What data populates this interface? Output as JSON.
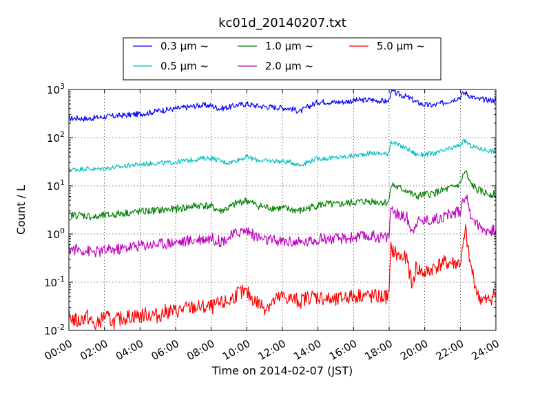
{
  "chart_data": {
    "type": "line",
    "title": "kc01d_20140207.txt",
    "xlabel": "Time on 2014-02-07 (JST)",
    "ylabel": "Count / L",
    "xlim": [
      "2014-02-07T00:00",
      "2014-02-08T00:00"
    ],
    "ylim": [
      0.01,
      1000
    ],
    "yscale": "log",
    "grid": true,
    "legend_placement": "top-center (above plot), 3 columns",
    "x_tick_labels": [
      "00:00",
      "02:00",
      "04:00",
      "06:00",
      "08:00",
      "10:00",
      "12:00",
      "14:00",
      "16:00",
      "18:00",
      "20:00",
      "22:00",
      "24:00"
    ],
    "y_tick_labels": [
      {
        "base": "10",
        "exp": "-2"
      },
      {
        "base": "10",
        "exp": "-1"
      },
      {
        "base": "10",
        "exp": "0"
      },
      {
        "base": "10",
        "exp": "1"
      },
      {
        "base": "10",
        "exp": "2"
      },
      {
        "base": "10",
        "exp": "3"
      }
    ],
    "x_hours": [
      0,
      0.5,
      1,
      1.5,
      2,
      2.5,
      3,
      3.5,
      4,
      4.5,
      5,
      5.5,
      6,
      6.5,
      7,
      7.5,
      8,
      8.5,
      9,
      9.5,
      10,
      10.5,
      11,
      11.5,
      12,
      12.5,
      13,
      13.5,
      14,
      14.5,
      15,
      15.5,
      16,
      16.5,
      17,
      17.5,
      17.9,
      18.0,
      18.1,
      18.5,
      19,
      19.3,
      19.5,
      20,
      20.5,
      21,
      21.5,
      22,
      22.1,
      22.3,
      22.5,
      23,
      23.5,
      24
    ],
    "series": [
      {
        "name": "0.3 μm ~",
        "color": "#0000ff",
        "values": [
          250,
          255,
          245,
          260,
          270,
          280,
          290,
          300,
          310,
          330,
          360,
          380,
          400,
          420,
          450,
          470,
          460,
          400,
          430,
          480,
          500,
          460,
          440,
          430,
          420,
          400,
          350,
          450,
          550,
          560,
          540,
          560,
          590,
          600,
          610,
          580,
          560,
          600,
          950,
          800,
          700,
          620,
          550,
          480,
          470,
          520,
          600,
          700,
          800,
          850,
          750,
          620,
          610,
          600
        ]
      },
      {
        "name": "0.5 μm ~",
        "color": "#00bfbf",
        "values": [
          22,
          22,
          23,
          22,
          23,
          24,
          25,
          27,
          28,
          29,
          30,
          30,
          31,
          33,
          35,
          37,
          38,
          33,
          30,
          35,
          40,
          35,
          33,
          33,
          32,
          31,
          27,
          32,
          37,
          37,
          38,
          40,
          42,
          45,
          48,
          47,
          46,
          55,
          85,
          70,
          60,
          50,
          45,
          45,
          47,
          52,
          60,
          70,
          80,
          85,
          70,
          60,
          55,
          52
        ]
      },
      {
        "name": "1.0 μm ~",
        "color": "#008000",
        "values": [
          2.4,
          2.5,
          2.4,
          2.2,
          2.4,
          2.5,
          2.7,
          2.8,
          2.9,
          3.0,
          3.1,
          3.2,
          3.3,
          3.5,
          3.8,
          4.0,
          3.7,
          3.0,
          3.5,
          4.5,
          5.0,
          4.0,
          3.6,
          3.5,
          3.4,
          3.2,
          3.0,
          3.5,
          4.0,
          4.2,
          4.0,
          4.3,
          4.5,
          4.7,
          4.8,
          4.6,
          4.5,
          5.0,
          11,
          9,
          8,
          6.5,
          6,
          6.5,
          7,
          8,
          9,
          11,
          15,
          20,
          12,
          8,
          7,
          6.5
        ]
      },
      {
        "name": "2.0 μm ~",
        "color": "#bf00bf",
        "values": [
          0.5,
          0.48,
          0.45,
          0.42,
          0.45,
          0.47,
          0.5,
          0.55,
          0.58,
          0.6,
          0.62,
          0.65,
          0.68,
          0.7,
          0.75,
          0.8,
          0.82,
          0.7,
          0.85,
          1.1,
          1.2,
          0.9,
          0.75,
          0.72,
          0.7,
          0.7,
          0.65,
          0.7,
          0.8,
          0.8,
          0.78,
          0.8,
          0.85,
          0.88,
          0.9,
          0.87,
          0.85,
          1.0,
          3.5,
          2.5,
          2.2,
          1.1,
          1.8,
          1.9,
          2.0,
          2.3,
          2.6,
          3.0,
          4.5,
          7.0,
          3.0,
          1.5,
          1.2,
          1.2
        ]
      },
      {
        "name": "5.0 μm ~",
        "color": "#ff0000",
        "values": [
          0.02,
          0.015,
          0.02,
          0.012,
          0.02,
          0.015,
          0.018,
          0.02,
          0.02,
          0.022,
          0.02,
          0.025,
          0.025,
          0.028,
          0.03,
          0.03,
          0.03,
          0.035,
          0.04,
          0.06,
          0.06,
          0.04,
          0.03,
          0.04,
          0.05,
          0.045,
          0.04,
          0.05,
          0.05,
          0.045,
          0.04,
          0.05,
          0.05,
          0.055,
          0.05,
          0.05,
          0.05,
          0.06,
          0.5,
          0.35,
          0.3,
          0.08,
          0.2,
          0.15,
          0.2,
          0.25,
          0.25,
          0.25,
          0.4,
          1.2,
          0.3,
          0.05,
          0.04,
          0.06
        ]
      }
    ]
  }
}
